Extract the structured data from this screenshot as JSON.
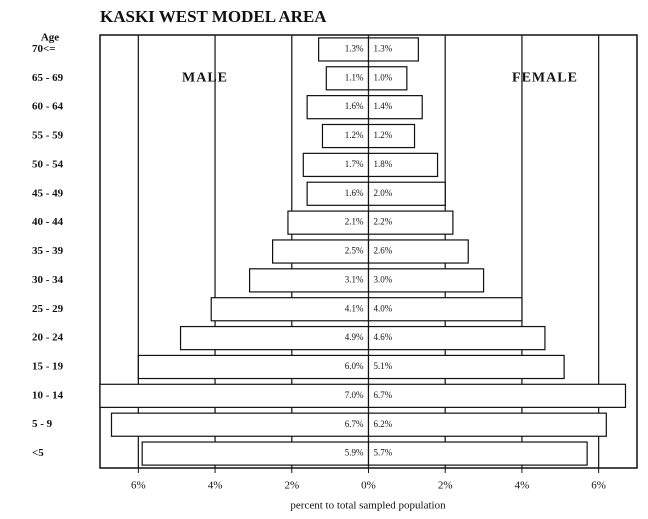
{
  "chart_data": {
    "type": "bar",
    "orientation": "horizontal",
    "title": "KASKI WEST MODEL AREA",
    "ylabel": "Age",
    "xlabel": "percent to total sampled population",
    "categories": [
      "70<=",
      "65 - 69",
      "60 - 64",
      "55 - 59",
      "50 - 54",
      "45 - 49",
      "40 - 44",
      "35 - 39",
      "30 - 34",
      "25 - 29",
      "20 - 24",
      "15 - 19",
      "10 - 14",
      "5 - 9",
      "<5"
    ],
    "series": [
      {
        "name": "MALE",
        "color": "#ffffff",
        "values": [
          1.3,
          1.1,
          1.6,
          1.2,
          1.7,
          1.6,
          2.1,
          2.5,
          3.1,
          4.1,
          4.9,
          6.0,
          7.0,
          6.7,
          5.9
        ],
        "value_labels": [
          "1.3%",
          "1.1%",
          "1.6%",
          "1.2%",
          "1.7%",
          "1.6%",
          "2.1%",
          "2.5%",
          "3.1%",
          "4.1%",
          "4.9%",
          "6.0%",
          "7.0%",
          "6.7%",
          "5.9%"
        ]
      },
      {
        "name": "FEMALE",
        "color": "#ffffff",
        "values": [
          1.3,
          1.0,
          1.4,
          1.2,
          1.8,
          2.0,
          2.2,
          2.6,
          3.0,
          4.0,
          4.6,
          5.1,
          6.7,
          6.2,
          5.7
        ],
        "value_labels": [
          "1.3%",
          "1.0%",
          "1.4%",
          "1.2%",
          "1.8%",
          "2.0%",
          "2.2%",
          "2.6%",
          "3.0%",
          "4.0%",
          "4.6%",
          "5.1%",
          "6.7%",
          "6.2%",
          "5.7%"
        ]
      }
    ],
    "xlim": [
      -7,
      7
    ],
    "xticks": [
      {
        "value": -6,
        "label": "6%"
      },
      {
        "value": -4,
        "label": "4%"
      },
      {
        "value": -2,
        "label": "2%"
      },
      {
        "value": 0,
        "label": "0%"
      },
      {
        "value": 2,
        "label": "2%"
      },
      {
        "value": 4,
        "label": "4%"
      },
      {
        "value": 6,
        "label": "6%"
      }
    ],
    "grid": true
  }
}
